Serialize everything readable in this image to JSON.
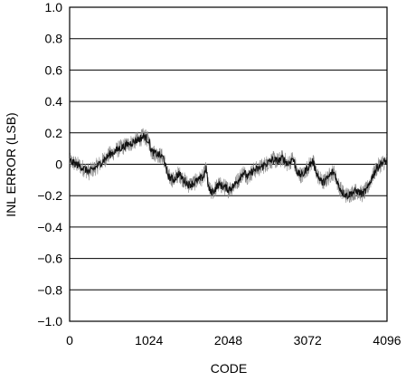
{
  "chart_data": {
    "type": "line",
    "title": "",
    "xlabel": "CODE",
    "ylabel": "INL ERROR (LSB)",
    "xlim": [
      0,
      4096
    ],
    "ylim": [
      -1.0,
      1.0
    ],
    "xticks": [
      0,
      1024,
      2048,
      3072,
      4096
    ],
    "xtick_labels": [
      "0",
      "1024",
      "2048",
      "3072",
      "4096"
    ],
    "yticks": [
      1.0,
      0.8,
      0.6,
      0.4,
      0.2,
      0,
      -0.2,
      -0.4,
      -0.6,
      -0.8,
      -1.0
    ],
    "ytick_labels": [
      "1.0",
      "0.8",
      "0.6",
      "0.4",
      "0.2",
      "0",
      "−0.2",
      "−0.4",
      "−0.6",
      "−0.8",
      "−1.0"
    ],
    "grid": "horizontal",
    "series": [
      {
        "color": "#111111",
        "x": [
          0,
          128,
          256,
          384,
          512,
          640,
          768,
          896,
          960,
          1024,
          1056,
          1152,
          1216,
          1248,
          1280,
          1344,
          1408,
          1472,
          1536,
          1600,
          1664,
          1728,
          1760,
          1792,
          1824,
          1856,
          1920,
          1984,
          2048,
          2112,
          2176,
          2240,
          2304,
          2368,
          2432,
          2496,
          2560,
          2624,
          2688,
          2752,
          2816,
          2880,
          2944,
          3008,
          3072,
          3136,
          3200,
          3264,
          3328,
          3392,
          3424,
          3456,
          3520,
          3584,
          3648,
          3712,
          3776,
          3840,
          3904,
          3968,
          4032,
          4096
        ],
        "y": [
          0.02,
          -0.01,
          -0.05,
          0.0,
          0.06,
          0.1,
          0.13,
          0.16,
          0.18,
          0.15,
          0.08,
          0.06,
          0.04,
          -0.04,
          -0.08,
          -0.1,
          -0.06,
          -0.1,
          -0.13,
          -0.12,
          -0.1,
          -0.08,
          -0.02,
          -0.15,
          -0.18,
          -0.17,
          -0.13,
          -0.14,
          -0.16,
          -0.14,
          -0.1,
          -0.05,
          -0.08,
          -0.04,
          -0.03,
          -0.01,
          0.01,
          0.03,
          0.02,
          0.04,
          0.0,
          0.04,
          -0.06,
          -0.07,
          -0.02,
          0.02,
          -0.07,
          -0.12,
          -0.09,
          -0.05,
          -0.06,
          -0.12,
          -0.18,
          -0.2,
          -0.18,
          -0.17,
          -0.19,
          -0.16,
          -0.08,
          -0.02,
          0.01,
          0.02
        ]
      }
    ]
  }
}
